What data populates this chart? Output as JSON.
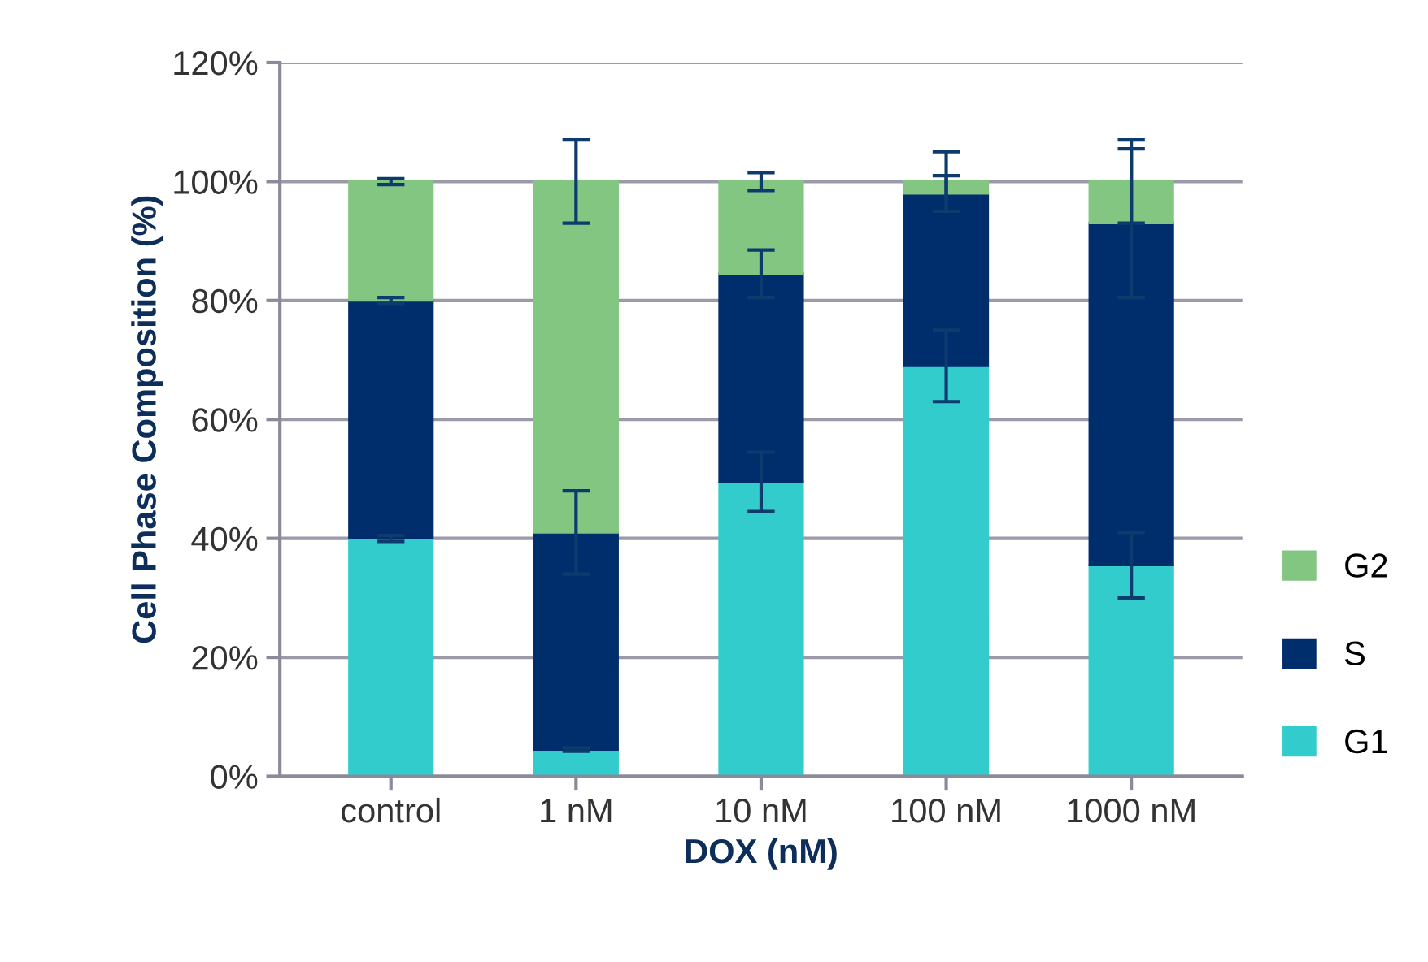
{
  "chart_data": {
    "type": "bar",
    "stacked": true,
    "xlabel": "DOX (nM)",
    "ylabel": "Cell Phase Composition (%)",
    "categories": [
      "control",
      "1 nM",
      "10 nM",
      "100 nM",
      "1000 nM"
    ],
    "series": [
      {
        "name": "G1",
        "color": "#33cccc",
        "values": [
          40,
          4.5,
          49.5,
          69,
          35.5
        ],
        "errors": [
          0.5,
          0.3,
          5,
          6,
          5.5
        ]
      },
      {
        "name": "S",
        "color": "#002d6b",
        "values": [
          40,
          36.5,
          35,
          29,
          57.5
        ],
        "errors": [
          0.5,
          7,
          4,
          3,
          12.5
        ]
      },
      {
        "name": "G2",
        "color": "#82c682",
        "values": [
          20,
          59,
          15.5,
          2,
          7
        ],
        "errors": [
          0.5,
          7,
          1.5,
          5,
          7
        ]
      }
    ],
    "ylim": [
      0,
      120
    ],
    "yticks": [
      {
        "value": 0,
        "label": "0%"
      },
      {
        "value": 20,
        "label": "20%"
      },
      {
        "value": 40,
        "label": "40%"
      },
      {
        "value": 60,
        "label": "60%"
      },
      {
        "value": 80,
        "label": "80%"
      },
      {
        "value": 100,
        "label": "100%"
      },
      {
        "value": 120,
        "label": "120%"
      }
    ],
    "grid": "y",
    "legend": "right"
  }
}
